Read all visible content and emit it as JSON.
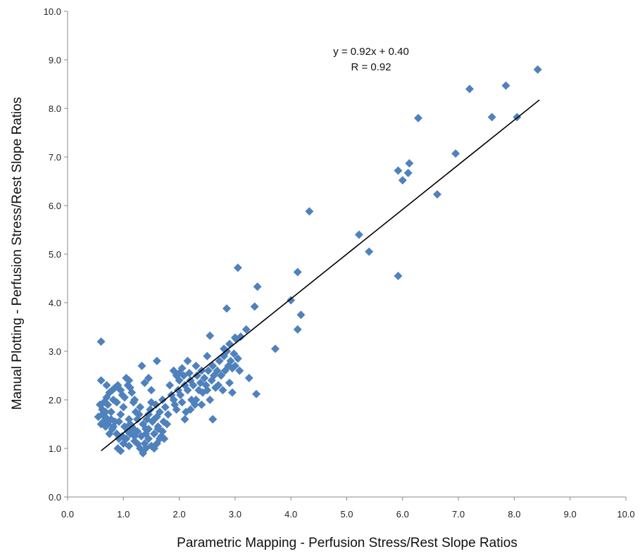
{
  "chart_data": {
    "type": "scatter",
    "xlabel": "Parametric Mapping - Perfusion Stress/Rest Slope Ratios",
    "ylabel": "Manual Plotting - Perfusion Stress/Rest Slope Ratios",
    "xlim": [
      0,
      10
    ],
    "ylim": [
      0,
      10
    ],
    "x_ticks": [
      "0.0",
      "1.0",
      "2.0",
      "3.0",
      "4.0",
      "5.0",
      "6.0",
      "7.0",
      "8.0",
      "9.0",
      "10.0"
    ],
    "y_ticks": [
      "0.0",
      "1.0",
      "2.0",
      "3.0",
      "4.0",
      "5.0",
      "6.0",
      "7.0",
      "8.0",
      "9.0",
      "10.0"
    ],
    "grid": false,
    "legend": "none",
    "marker_color": "#4F81BD",
    "marker_shape": "diamond",
    "trendline": {
      "slope": 0.92,
      "intercept": 0.4,
      "x_range": [
        0.6,
        8.45
      ],
      "color": "#000000"
    },
    "annotations": [
      "y = 0.92x + 0.40",
      "R = 0.92"
    ],
    "series": [
      {
        "points": [
          [
            0.6,
            3.2
          ],
          [
            0.6,
            2.4
          ],
          [
            0.58,
            1.9
          ],
          [
            0.62,
            1.7
          ],
          [
            0.6,
            1.5
          ],
          [
            0.68,
            1.45
          ],
          [
            0.7,
            1.62
          ],
          [
            0.72,
            1.9
          ],
          [
            0.75,
            2.15
          ],
          [
            0.78,
            1.75
          ],
          [
            0.8,
            1.4
          ],
          [
            0.82,
            2.0
          ],
          [
            0.85,
            2.25
          ],
          [
            0.88,
            1.95
          ],
          [
            0.9,
            2.3
          ],
          [
            0.92,
            1.55
          ],
          [
            0.95,
            1.7
          ],
          [
            0.98,
            2.1
          ],
          [
            1.0,
            1.85
          ],
          [
            1.02,
            2.05
          ],
          [
            1.05,
            2.45
          ],
          [
            1.08,
            2.3
          ],
          [
            1.1,
            1.6
          ],
          [
            1.12,
            1.5
          ],
          [
            1.15,
            2.15
          ],
          [
            1.18,
            1.95
          ],
          [
            1.2,
            2.0
          ],
          [
            1.22,
            1.75
          ],
          [
            1.25,
            1.6
          ],
          [
            0.65,
            1.95
          ],
          [
            0.75,
            1.3
          ],
          [
            0.85,
            1.55
          ],
          [
            0.9,
            1.0
          ],
          [
            0.95,
            0.95
          ],
          [
            1.0,
            1.1
          ],
          [
            1.05,
            1.2
          ],
          [
            1.1,
            1.05
          ],
          [
            1.12,
            1.3
          ],
          [
            1.15,
            1.45
          ],
          [
            1.2,
            1.15
          ],
          [
            1.25,
            1.35
          ],
          [
            1.3,
            1.0
          ],
          [
            1.32,
            1.25
          ],
          [
            1.35,
            1.5
          ],
          [
            1.38,
            1.1
          ],
          [
            1.4,
            1.4
          ],
          [
            1.42,
            1.6
          ],
          [
            1.45,
            1.2
          ],
          [
            1.48,
            1.8
          ],
          [
            1.5,
            1.05
          ],
          [
            1.52,
            1.55
          ],
          [
            1.55,
            1.3
          ],
          [
            1.58,
            1.9
          ],
          [
            1.6,
            1.65
          ],
          [
            1.62,
            1.4
          ],
          [
            1.65,
            1.75
          ],
          [
            1.68,
            1.25
          ],
          [
            1.7,
            2.0
          ],
          [
            1.72,
            1.55
          ],
          [
            1.75,
            1.85
          ],
          [
            1.35,
            0.9
          ],
          [
            1.4,
            1.3
          ],
          [
            1.45,
            1.7
          ],
          [
            1.5,
            1.95
          ],
          [
            1.55,
            1.6
          ],
          [
            1.28,
            1.7
          ],
          [
            1.3,
            1.85
          ],
          [
            1.33,
            2.7
          ],
          [
            1.38,
            2.35
          ],
          [
            1.45,
            2.45
          ],
          [
            1.5,
            2.2
          ],
          [
            1.6,
            2.8
          ],
          [
            1.62,
            1.45
          ],
          [
            1.7,
            1.35
          ],
          [
            1.73,
            1.2
          ],
          [
            1.78,
            1.5
          ],
          [
            1.8,
            1.7
          ],
          [
            1.83,
            2.3
          ],
          [
            1.86,
            2.1
          ],
          [
            1.9,
            2.0
          ],
          [
            1.92,
            1.9
          ],
          [
            1.95,
            1.8
          ],
          [
            1.98,
            2.2
          ],
          [
            2.0,
            2.4
          ],
          [
            2.02,
            2.1
          ],
          [
            2.05,
            1.95
          ],
          [
            2.08,
            2.5
          ],
          [
            2.1,
            2.3
          ],
          [
            2.12,
            1.75
          ],
          [
            2.15,
            2.2
          ],
          [
            2.18,
            2.55
          ],
          [
            2.2,
            2.4
          ],
          [
            2.22,
            2.0
          ],
          [
            2.25,
            2.3
          ],
          [
            2.28,
            1.9
          ],
          [
            2.3,
            2.7
          ],
          [
            2.32,
            2.5
          ],
          [
            2.35,
            2.2
          ],
          [
            2.38,
            2.35
          ],
          [
            2.4,
            2.6
          ],
          [
            2.42,
            2.15
          ],
          [
            2.45,
            2.45
          ],
          [
            2.48,
            2.3
          ],
          [
            2.5,
            2.9
          ],
          [
            2.52,
            2.6
          ],
          [
            2.55,
            2.0
          ],
          [
            2.58,
            2.4
          ],
          [
            2.6,
            2.7
          ],
          [
            2.62,
            2.5
          ],
          [
            2.65,
            2.25
          ],
          [
            2.68,
            2.6
          ],
          [
            2.7,
            2.3
          ],
          [
            2.72,
            2.8
          ],
          [
            2.75,
            2.5
          ],
          [
            2.78,
            2.2
          ],
          [
            2.8,
            2.9
          ],
          [
            2.82,
            2.6
          ],
          [
            2.85,
            3.0
          ],
          [
            2.88,
            2.7
          ],
          [
            2.9,
            2.35
          ],
          [
            2.92,
            2.8
          ],
          [
            2.95,
            2.65
          ],
          [
            2.98,
            2.95
          ],
          [
            3.0,
            2.7
          ],
          [
            3.02,
            3.25
          ],
          [
            3.05,
            2.85
          ],
          [
            2.8,
            3.05
          ],
          [
            2.9,
            3.15
          ],
          [
            3.08,
            2.6
          ],
          [
            2.1,
            1.6
          ],
          [
            2.2,
            1.8
          ],
          [
            2.3,
            2.0
          ],
          [
            2.4,
            1.9
          ],
          [
            2.5,
            2.2
          ],
          [
            2.6,
            1.6
          ],
          [
            1.9,
            2.6
          ],
          [
            1.95,
            2.5
          ],
          [
            2.0,
            2.55
          ],
          [
            2.05,
            2.65
          ],
          [
            2.15,
            2.8
          ],
          [
            1.6,
            1.1
          ],
          [
            1.65,
            1.2
          ],
          [
            1.55,
            1.0
          ],
          [
            1.45,
            1.4
          ],
          [
            1.4,
            1.0
          ],
          [
            1.25,
            1.1
          ],
          [
            1.2,
            1.25
          ],
          [
            1.18,
            1.4
          ],
          [
            1.08,
            1.35
          ],
          [
            1.02,
            1.45
          ],
          [
            0.98,
            1.25
          ],
          [
            0.92,
            1.2
          ],
          [
            0.88,
            1.3
          ],
          [
            0.82,
            1.45
          ],
          [
            0.78,
            1.6
          ],
          [
            0.72,
            1.5
          ],
          [
            0.68,
            1.75
          ],
          [
            0.64,
            1.55
          ],
          [
            0.7,
            2.05
          ],
          [
            0.8,
            2.2
          ],
          [
            0.55,
            1.65
          ],
          [
            0.62,
            1.8
          ],
          [
            0.7,
            2.3
          ],
          [
            0.95,
            2.2
          ],
          [
            1.1,
            2.4
          ],
          [
            1.12,
            2.25
          ],
          [
            3.05,
            4.72
          ],
          [
            2.85,
            3.88
          ],
          [
            3.2,
            3.45
          ],
          [
            3.25,
            2.45
          ],
          [
            3.35,
            3.92
          ],
          [
            3.4,
            4.33
          ],
          [
            3.38,
            2.12
          ],
          [
            3.0,
            3.28
          ],
          [
            2.95,
            2.15
          ],
          [
            3.1,
            3.3
          ],
          [
            2.55,
            3.32
          ],
          [
            2.6,
            1.6
          ],
          [
            3.72,
            3.05
          ],
          [
            4.0,
            4.05
          ],
          [
            4.12,
            4.63
          ],
          [
            4.12,
            3.45
          ],
          [
            4.18,
            3.75
          ],
          [
            4.33,
            5.88
          ],
          [
            5.22,
            5.4
          ],
          [
            5.4,
            5.05
          ],
          [
            5.92,
            4.55
          ],
          [
            5.92,
            6.72
          ],
          [
            6.0,
            6.52
          ],
          [
            6.1,
            6.67
          ],
          [
            6.12,
            6.87
          ],
          [
            6.28,
            7.8
          ],
          [
            6.62,
            6.23
          ],
          [
            6.95,
            7.07
          ],
          [
            7.2,
            8.4
          ],
          [
            7.6,
            7.82
          ],
          [
            7.85,
            8.47
          ],
          [
            8.05,
            7.82
          ],
          [
            8.42,
            8.8
          ]
        ]
      }
    ]
  }
}
